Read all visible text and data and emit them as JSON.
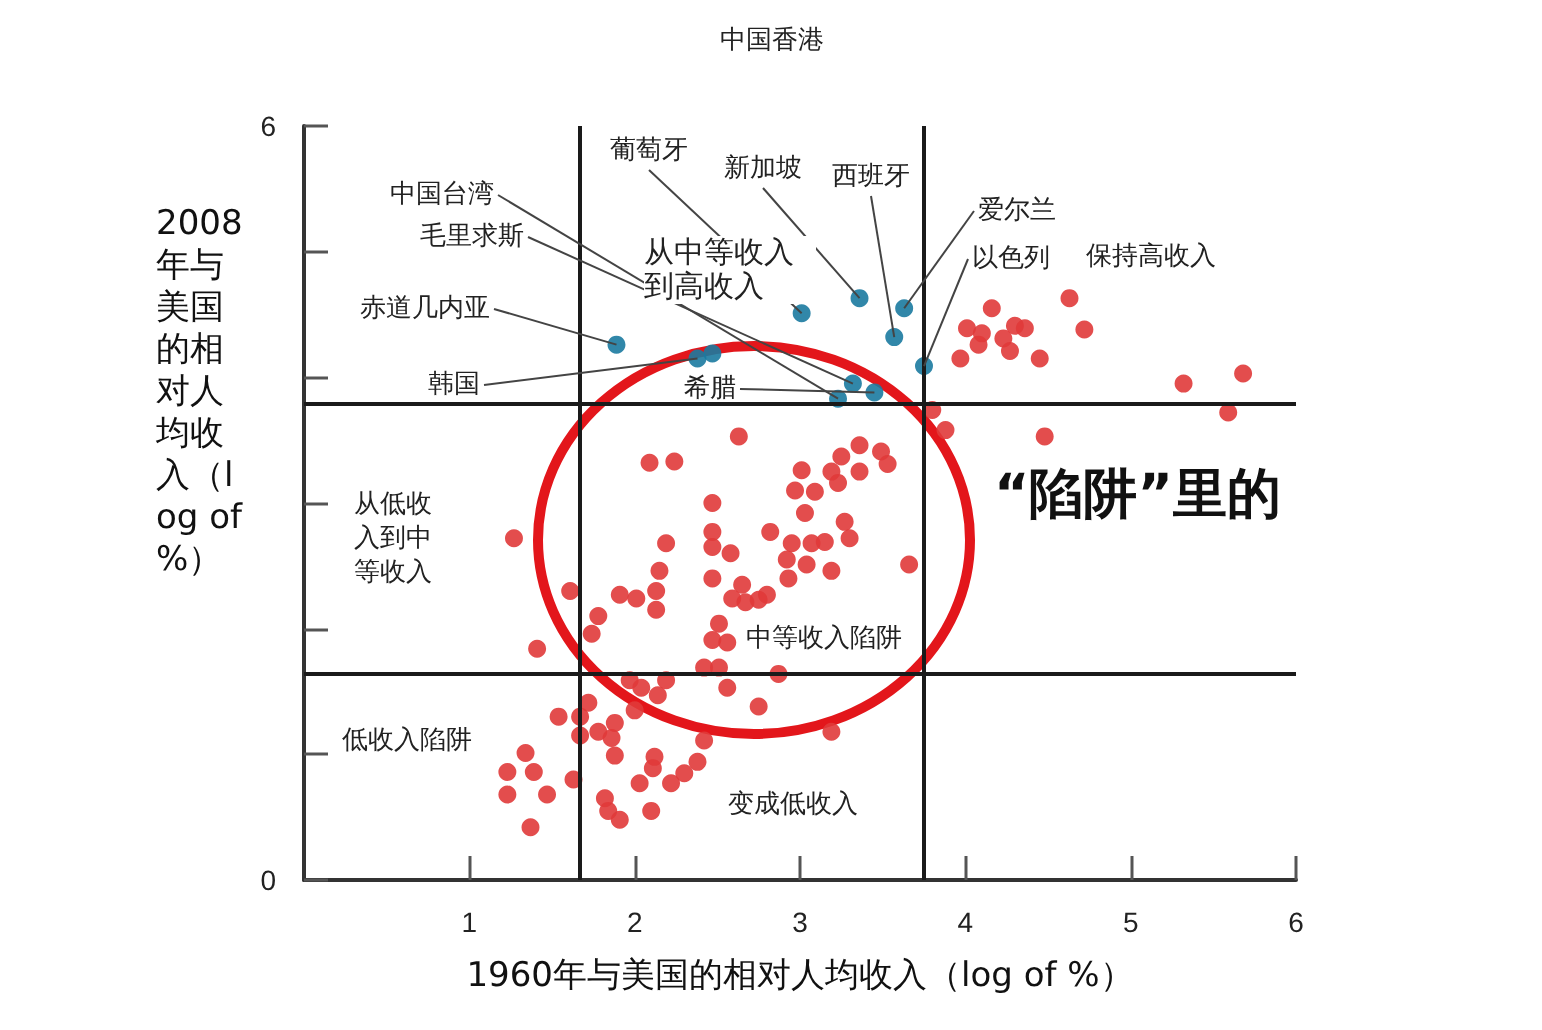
{
  "chart_data": {
    "type": "scatter",
    "xlabel": "1960年与美国的相对人均收入（log of %）",
    "ylabel": "2008年与美国的相对人均收入（log of %）",
    "xlim": [
      0,
      6
    ],
    "xticks": [
      1,
      2,
      3,
      4,
      5,
      6
    ],
    "ylim": [
      0,
      6
    ],
    "yticks": [
      0,
      {
        "value": 1,
        "label": null
      },
      {
        "value": 2,
        "label": null
      },
      {
        "value": 3,
        "label": null
      },
      {
        "value": 4,
        "label": null
      },
      {
        "value": 5,
        "label": null
      },
      6
    ],
    "grid": false,
    "marker": "circle",
    "series": [
      {
        "color": "#e03a3a",
        "x": [
          1.27,
          2.47,
          2.97,
          3.09,
          3.23,
          3.03,
          3.27,
          2.82,
          2.47,
          2.19,
          2.47,
          2.58,
          2.95,
          3.07,
          3.15,
          3.3,
          2.92,
          3.04,
          3.19,
          3.66,
          2.15,
          2.47,
          2.65,
          2.93,
          1.61,
          1.91,
          2.01,
          2.13,
          2.13,
          2.59,
          2.67,
          2.75,
          2.8,
          1.78,
          1.74,
          2.51,
          2.47,
          2.56,
          1.41,
          2.42,
          2.51,
          2.87,
          1.97,
          2.04,
          2.19,
          2.14,
          2.56,
          1.72,
          2.0,
          2.75,
          1.54,
          1.67,
          1.88,
          1.78,
          1.67,
          1.86,
          2.42,
          3.19,
          1.34,
          1.88,
          1.23,
          1.39,
          2.12,
          2.11,
          2.38,
          1.63,
          2.3,
          2.22,
          1.23,
          1.47,
          2.03,
          1.82,
          1.84,
          1.91,
          2.1,
          1.37,
          2.63,
          2.09,
          2.24,
          3.01,
          3.25,
          3.36,
          3.49,
          3.53,
          3.19,
          3.36,
          3.8,
          3.88,
          4.48,
          4.16,
          4.01,
          4.1,
          4.08,
          4.23,
          4.3,
          4.36,
          4.27,
          3.97,
          4.45,
          4.63,
          4.72,
          5.32,
          5.68,
          5.59
        ],
        "values": [
          2.72,
          3.0,
          3.1,
          3.09,
          3.16,
          2.92,
          2.85,
          2.77,
          2.77,
          2.68,
          2.65,
          2.6,
          2.68,
          2.68,
          2.69,
          2.72,
          2.55,
          2.51,
          2.46,
          2.51,
          2.46,
          2.4,
          2.35,
          2.4,
          2.3,
          2.27,
          2.24,
          2.3,
          2.15,
          2.24,
          2.21,
          2.23,
          2.27,
          2.1,
          1.96,
          2.04,
          1.91,
          1.89,
          1.84,
          1.69,
          1.69,
          1.64,
          1.59,
          1.53,
          1.59,
          1.47,
          1.53,
          1.41,
          1.35,
          1.38,
          1.3,
          1.3,
          1.25,
          1.18,
          1.15,
          1.13,
          1.11,
          1.18,
          1.01,
          0.99,
          0.86,
          0.86,
          0.98,
          0.89,
          0.94,
          0.8,
          0.85,
          0.77,
          0.68,
          0.68,
          0.77,
          0.65,
          0.55,
          0.48,
          0.55,
          0.42,
          3.53,
          3.32,
          3.33,
          3.26,
          3.37,
          3.46,
          3.41,
          3.31,
          3.25,
          3.25,
          3.74,
          3.58,
          3.53,
          4.55,
          4.39,
          4.35,
          4.26,
          4.31,
          4.41,
          4.39,
          4.21,
          4.15,
          4.15,
          4.63,
          4.38,
          3.95,
          4.03,
          3.72
        ]
      },
      {
        "color": "#1b7aa0",
        "x": [
          1.89,
          2.38,
          2.47,
          3.01,
          3.36,
          3.63,
          3.57,
          3.75,
          3.32,
          3.45,
          3.23
        ],
        "values": [
          4.26,
          4.15,
          4.19,
          4.51,
          4.63,
          4.55,
          4.32,
          4.09,
          3.95,
          3.88,
          3.83
        ]
      }
    ],
    "ref_lines": [
      {
        "axis": "x",
        "value": 1.67,
        "color": "#1a1a1a"
      },
      {
        "axis": "x",
        "value": 3.75,
        "color": "#1a1a1a"
      },
      {
        "axis": "y",
        "value": 3.79,
        "color": "#1a1a1a"
      },
      {
        "axis": "y",
        "value": 1.64,
        "color": "#1a1a1a"
      }
    ],
    "annotations": [
      "中国香港",
      {
        "text": "葡萄牙",
        "x": 3.01,
        "y": 4.51
      },
      {
        "text": "新加坡",
        "x": 3.36,
        "y": 4.63
      },
      {
        "text": "西班牙",
        "x": 3.57,
        "y": 4.32
      },
      {
        "text": "爱尔兰",
        "x": 3.63,
        "y": 4.55
      },
      {
        "text": "以色列",
        "x": 3.75,
        "y": 4.09
      },
      {
        "text": "中国台湾",
        "x": 3.23,
        "y": 3.83
      },
      {
        "text": "毛里求斯",
        "x": 3.32,
        "y": 3.95
      },
      {
        "text": "赤道几内亚",
        "x": 1.89,
        "y": 4.26
      },
      {
        "text": "韩国",
        "x": 2.38,
        "y": 4.15
      },
      {
        "text": "希腊",
        "x": 3.45,
        "y": 3.88
      },
      "从中等收入到高收入",
      "保持高收入",
      "从低收入到中等收入",
      "中等收入陷阱",
      "低收入陷阱",
      "变成低收入",
      "“陷阱”里的"
    ]
  }
}
